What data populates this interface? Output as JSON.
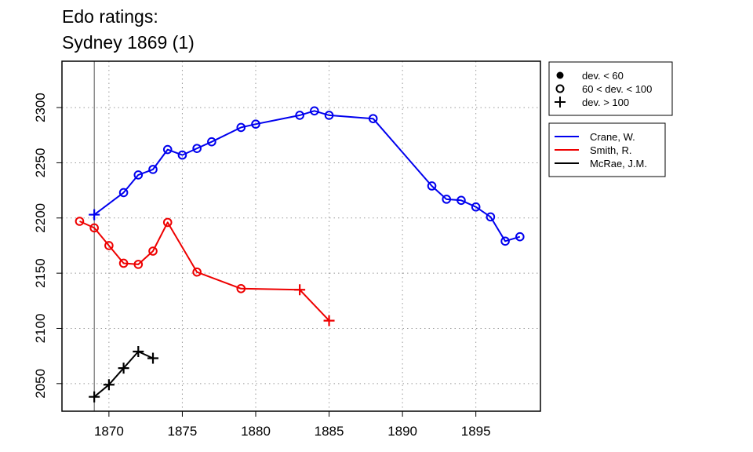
{
  "chart_data": {
    "type": "line",
    "title_lines": [
      "Edo ratings:",
      "Sydney 1869 (1)"
    ],
    "xlabel": "",
    "ylabel": "",
    "xlim": [
      1866.8,
      1899.4
    ],
    "ylim": [
      2025,
      2342
    ],
    "x_ticks": [
      1870,
      1875,
      1880,
      1885,
      1890,
      1895
    ],
    "x_tick_labels": [
      "1870",
      "1875",
      "1880",
      "1885",
      "1890",
      "1895"
    ],
    "y_ticks": [
      2050,
      2100,
      2150,
      2200,
      2250,
      2300
    ],
    "y_tick_labels": [
      "2050",
      "2100",
      "2150",
      "2200",
      "2250",
      "2300"
    ],
    "grid": true,
    "reference_line_x": 1869,
    "marker_legend": [
      {
        "marker": "dot",
        "label": "dev. < 60"
      },
      {
        "marker": "circle",
        "label": "60 < dev. < 100"
      },
      {
        "marker": "plus",
        "label": "dev. > 100"
      }
    ],
    "series": [
      {
        "name": "Crane, W.",
        "color": "#0000ee",
        "points": [
          {
            "x": 1869,
            "y": 2203,
            "m": "plus"
          },
          {
            "x": 1871,
            "y": 2223,
            "m": "circle"
          },
          {
            "x": 1872,
            "y": 2239,
            "m": "circle"
          },
          {
            "x": 1873,
            "y": 2244,
            "m": "circle"
          },
          {
            "x": 1874,
            "y": 2262,
            "m": "circle"
          },
          {
            "x": 1875,
            "y": 2257,
            "m": "circle"
          },
          {
            "x": 1876,
            "y": 2263,
            "m": "circle"
          },
          {
            "x": 1877,
            "y": 2269,
            "m": "circle"
          },
          {
            "x": 1879,
            "y": 2282,
            "m": "circle"
          },
          {
            "x": 1880,
            "y": 2285,
            "m": "circle"
          },
          {
            "x": 1883,
            "y": 2293,
            "m": "circle"
          },
          {
            "x": 1884,
            "y": 2297,
            "m": "circle"
          },
          {
            "x": 1885,
            "y": 2293,
            "m": "circle"
          },
          {
            "x": 1888,
            "y": 2290,
            "m": "circle"
          },
          {
            "x": 1892,
            "y": 2229,
            "m": "circle"
          },
          {
            "x": 1893,
            "y": 2217,
            "m": "circle"
          },
          {
            "x": 1894,
            "y": 2216,
            "m": "circle"
          },
          {
            "x": 1895,
            "y": 2210,
            "m": "circle"
          },
          {
            "x": 1896,
            "y": 2201,
            "m": "circle"
          },
          {
            "x": 1897,
            "y": 2179,
            "m": "circle"
          },
          {
            "x": 1898,
            "y": 2183,
            "m": "circle"
          }
        ]
      },
      {
        "name": "Smith, R.",
        "color": "#ee0000",
        "points": [
          {
            "x": 1868,
            "y": 2197,
            "m": "circle"
          },
          {
            "x": 1869,
            "y": 2191,
            "m": "circle"
          },
          {
            "x": 1870,
            "y": 2175,
            "m": "circle"
          },
          {
            "x": 1871,
            "y": 2159,
            "m": "circle"
          },
          {
            "x": 1872,
            "y": 2158,
            "m": "circle"
          },
          {
            "x": 1873,
            "y": 2170,
            "m": "circle"
          },
          {
            "x": 1874,
            "y": 2196,
            "m": "circle"
          },
          {
            "x": 1876,
            "y": 2151,
            "m": "circle"
          },
          {
            "x": 1879,
            "y": 2136,
            "m": "circle"
          },
          {
            "x": 1883,
            "y": 2135,
            "m": "plus"
          },
          {
            "x": 1885,
            "y": 2107,
            "m": "plus"
          }
        ]
      },
      {
        "name": "McRae, J.M.",
        "color": "#000000",
        "points": [
          {
            "x": 1869,
            "y": 2038,
            "m": "plus"
          },
          {
            "x": 1870,
            "y": 2049,
            "m": "plus"
          },
          {
            "x": 1871,
            "y": 2064,
            "m": "plus"
          },
          {
            "x": 1872,
            "y": 2079,
            "m": "plus"
          },
          {
            "x": 1873,
            "y": 2073,
            "m": "plus"
          }
        ]
      }
    ]
  }
}
